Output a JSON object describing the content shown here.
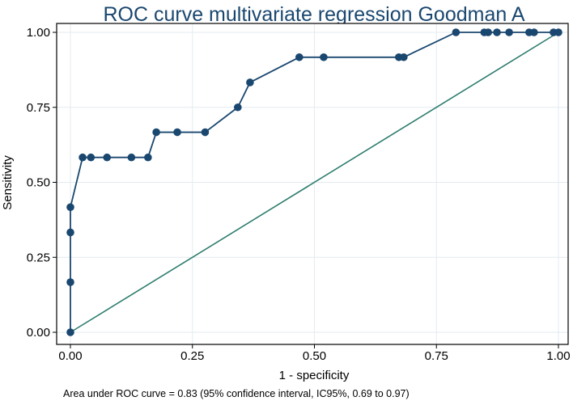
{
  "chart_data": {
    "type": "line",
    "title": "ROC curve multivariate regression Goodman A",
    "xlabel": "1 - specificity",
    "ylabel": "Sensitivity",
    "xlim": [
      0,
      1
    ],
    "ylim": [
      0,
      1
    ],
    "x_ticks": [
      "0.00",
      "0.25",
      "0.50",
      "0.75",
      "1.00"
    ],
    "y_ticks": [
      "0.00",
      "0.25",
      "0.50",
      "0.75",
      "1.00"
    ],
    "grid": true,
    "note": "Area under ROC curve = 0.83 (95% confidence interval, IC95%, 0.69 to 0.97)",
    "series": [
      {
        "name": "ROC curve",
        "color": "#1a476f",
        "x": [
          0.0,
          0.0,
          0.0,
          0.0,
          0.025,
          0.042,
          0.075,
          0.125,
          0.159,
          0.176,
          0.219,
          0.276,
          0.343,
          0.368,
          0.469,
          0.519,
          0.673,
          0.683,
          0.79,
          0.848,
          0.856,
          0.874,
          0.899,
          0.94,
          0.95,
          0.99,
          1.0
        ],
        "y": [
          0.0,
          0.167,
          0.333,
          0.417,
          0.583,
          0.583,
          0.583,
          0.583,
          0.583,
          0.667,
          0.667,
          0.667,
          0.75,
          0.833,
          0.917,
          0.917,
          0.917,
          0.917,
          1.0,
          1.0,
          1.0,
          1.0,
          1.0,
          1.0,
          1.0,
          1.0,
          1.0
        ]
      },
      {
        "name": "Reference line",
        "color": "#2e7d6e",
        "x": [
          0,
          1
        ],
        "y": [
          0,
          1
        ]
      }
    ],
    "colors": {
      "frame": "#000000",
      "grid": "#e4ebf0",
      "background": "#ffffff"
    }
  }
}
